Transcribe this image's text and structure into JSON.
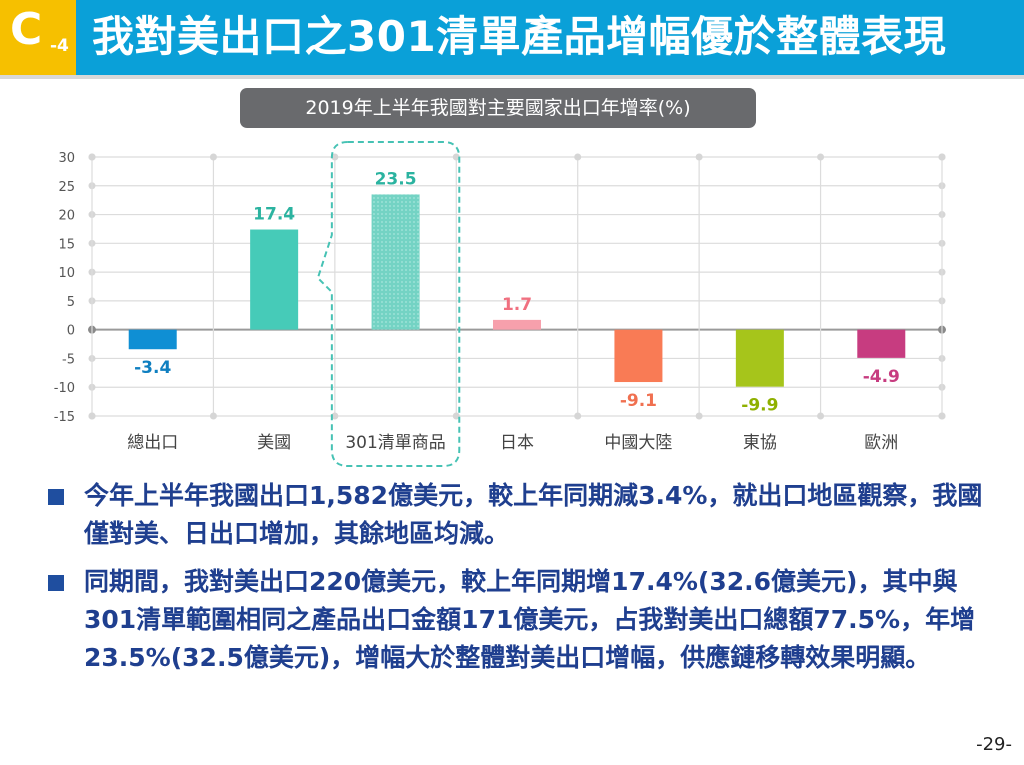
{
  "header": {
    "badge_letter": "C",
    "badge_sub": "-4",
    "title": "我對美出口之301清單產品增幅優於整體表現"
  },
  "chart_data": {
    "type": "bar",
    "title": "2019年上半年我國對主要國家出口年增率(%)",
    "categories": [
      "總出口",
      "美國",
      "301清單商品",
      "日本",
      "中國大陸",
      "東協",
      "歐洲"
    ],
    "values": [
      -3.4,
      17.4,
      23.5,
      1.7,
      -9.1,
      -9.9,
      -4.9
    ],
    "value_labels": [
      "-3.4",
      "17.4",
      "23.5",
      "1.7",
      "-9.1",
      "-9.9",
      "-4.9"
    ],
    "colors": [
      "#0f8fd4",
      "#46cbb8",
      "#74d3c4",
      "#f7a0ac",
      "#f97b55",
      "#a6c51b",
      "#c73c80"
    ],
    "label_colors": [
      "#0f7fc0",
      "#2bb3a0",
      "#2bb3a0",
      "#f07080",
      "#f07050",
      "#8fb000",
      "#c73c80"
    ],
    "highlighted_category": "301清單商品",
    "ylim": [
      -15,
      30
    ],
    "yticks": [
      "30",
      "25",
      "20",
      "15",
      "10",
      "5",
      "0",
      "-5",
      "-10",
      "-15"
    ],
    "grid": true,
    "legend": "none"
  },
  "bullets": [
    {
      "text": "今年上半年我國出口1,582億美元，較上年同期減3.4%，就出口地區觀察，我國僅對美、日出口增加，其餘地區均減。"
    },
    {
      "text": "同期間，我對美出口220億美元，較上年同期增17.4%(32.6億美元)，其中與301清單範圍相同之產品出口金額171億美元，占我對美出口總額77.5%，年增23.5%(32.5億美元)，增幅大於整體對美出口增幅，供應鏈移轉效果明顯。"
    }
  ],
  "page_number": "-29-"
}
